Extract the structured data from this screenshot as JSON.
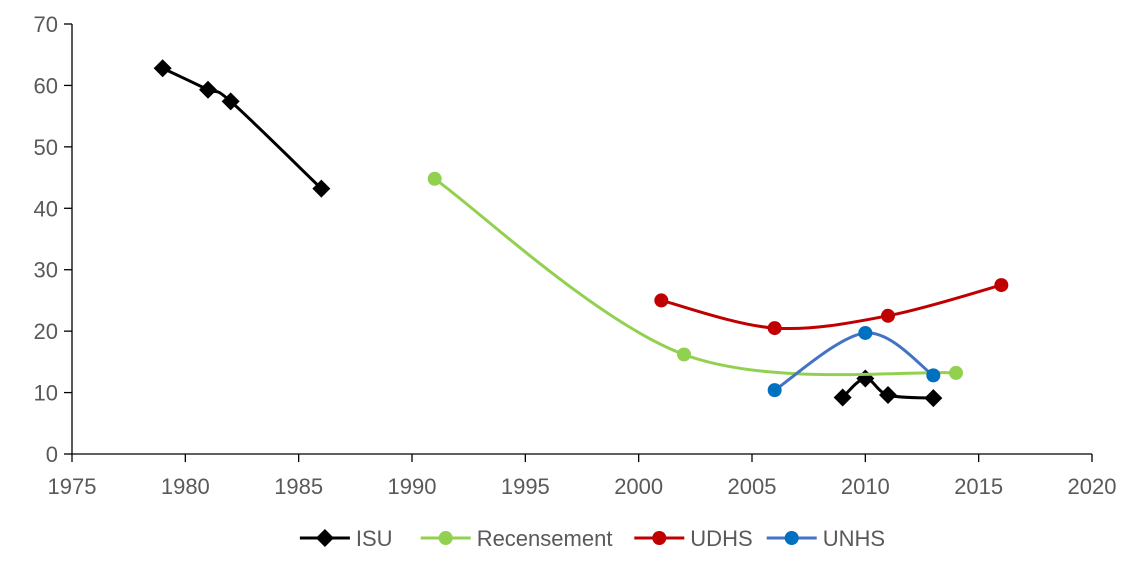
{
  "chart_data": {
    "type": "line",
    "smooth": true,
    "xlim": [
      1975,
      2020
    ],
    "ylim": [
      0,
      70
    ],
    "x_ticks": [
      1975,
      1980,
      1985,
      1990,
      1995,
      2000,
      2005,
      2010,
      2015,
      2020
    ],
    "y_ticks": [
      0,
      10,
      20,
      30,
      40,
      50,
      60,
      70
    ],
    "grid": false,
    "legend_position": "bottom",
    "series": [
      {
        "name": "ISU",
        "color": "#000000",
        "marker": "diamond",
        "segments": [
          [
            [
              1979,
              62.8
            ],
            [
              1981,
              59.3
            ],
            [
              1982,
              57.4
            ],
            [
              1986,
              43.2
            ]
          ],
          [
            [
              2009,
              9.2
            ],
            [
              2010,
              12.3
            ],
            [
              2011,
              9.6
            ],
            [
              2013,
              9.1
            ]
          ]
        ]
      },
      {
        "name": "Recensement",
        "color": "#92D050",
        "marker": "circle",
        "segments": [
          [
            [
              1991,
              44.8
            ],
            [
              2002,
              16.2
            ],
            [
              2014,
              13.2
            ]
          ]
        ]
      },
      {
        "name": "UDHS",
        "color": "#C00000",
        "marker": "circle",
        "segments": [
          [
            [
              2001,
              25.0
            ],
            [
              2006,
              20.5
            ],
            [
              2011,
              22.5
            ],
            [
              2016,
              27.5
            ]
          ]
        ]
      },
      {
        "name": "UNHS",
        "color": "#4472C4",
        "marker_color": "#0070C0",
        "marker": "circle",
        "segments": [
          [
            [
              2006,
              10.4
            ],
            [
              2010,
              19.7
            ],
            [
              2013,
              12.8
            ]
          ]
        ]
      }
    ]
  }
}
